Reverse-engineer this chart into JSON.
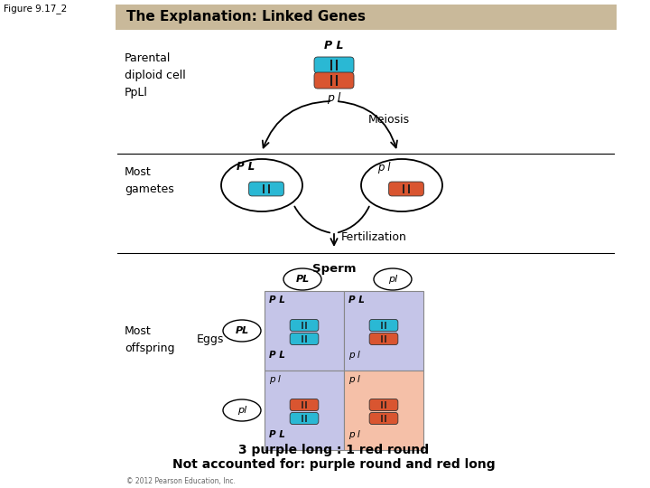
{
  "figure_label": "Figure 9.17_2",
  "title": "The Explanation: Linked Genes",
  "title_bg": "#c9b99a",
  "bg_color": "#ffffff",
  "blue_chrom": "#2ab8d4",
  "red_chrom": "#d95530",
  "purple_bg": "#c5c5e8",
  "pink_bg": "#f5c0a8",
  "parental_label": "Parental\ndiploid cell\nPpLl",
  "meiosis_label": "Meiosis",
  "most_gametes_label": "Most\ngametes",
  "fertilization_label": "Fertilization",
  "sperm_label": "Sperm",
  "most_offspring_label": "Most\noffspring",
  "eggs_label": "Eggs",
  "bottom_text1": "3 purple long : 1 red round",
  "bottom_text2": "Not accounted for: purple round and red long",
  "copyright": "© 2012 Pearson Education, Inc."
}
